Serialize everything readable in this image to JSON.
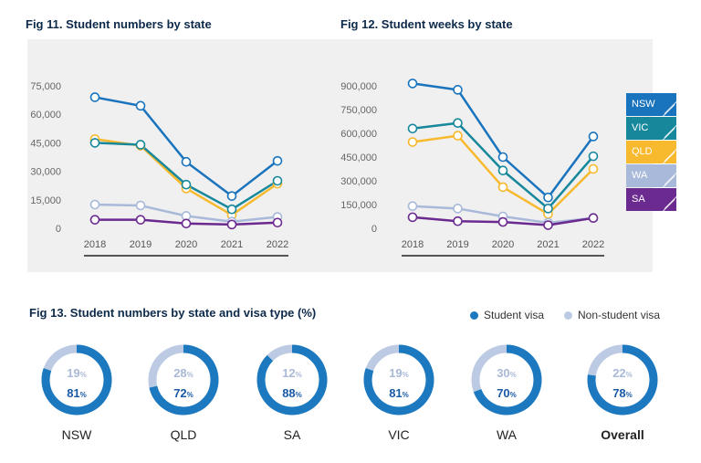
{
  "fig11": {
    "title": "Fig 11. Student numbers by state"
  },
  "fig12": {
    "title": "Fig 12. Student weeks by state"
  },
  "fig13": {
    "title": "Fig 13. Student numbers by state and visa type (%)",
    "legend": {
      "student": "Student visa",
      "non_student": "Non-student visa"
    }
  },
  "colors": {
    "NSW": "#1a74bd",
    "VIC": "#17889c",
    "QLD": "#f7b92e",
    "WA": "#a8b9da",
    "SA": "#6a2a8f",
    "student": "#1c79c0",
    "non_student": "#bccbe3"
  },
  "state_legend": [
    "NSW",
    "VIC",
    "QLD",
    "WA",
    "SA"
  ],
  "chart_data": [
    {
      "type": "line",
      "title": "Fig 11. Student numbers by state",
      "x": [
        "2018",
        "2019",
        "2020",
        "2021",
        "2022"
      ],
      "ylim": [
        0,
        75000
      ],
      "yticks": [
        0,
        15000,
        30000,
        45000,
        60000,
        75000
      ],
      "ytick_labels": [
        "0",
        "15,000",
        "30,000",
        "45,000",
        "60,000",
        "75,000"
      ],
      "series": [
        {
          "name": "QLD",
          "values": [
            47000,
            43500,
            21000,
            7000,
            23500
          ]
        },
        {
          "name": "VIC",
          "values": [
            45000,
            44000,
            23000,
            10000,
            25000
          ]
        },
        {
          "name": "WA",
          "values": [
            12500,
            12000,
            6500,
            3500,
            6000
          ]
        },
        {
          "name": "SA",
          "values": [
            4500,
            4500,
            2500,
            2000,
            3000
          ]
        },
        {
          "name": "NSW",
          "values": [
            69000,
            64500,
            35000,
            17000,
            35500
          ]
        }
      ]
    },
    {
      "type": "line",
      "title": "Fig 12. Student weeks by state",
      "x": [
        "2018",
        "2019",
        "2020",
        "2021",
        "2022"
      ],
      "ylim": [
        0,
        900000
      ],
      "yticks": [
        0,
        150000,
        300000,
        450000,
        600000,
        750000,
        900000
      ],
      "ytick_labels": [
        "0",
        "150,000",
        "300,000",
        "450,000",
        "600,000",
        "750,000",
        "900,000"
      ],
      "series": [
        {
          "name": "QLD",
          "values": [
            545000,
            585000,
            260000,
            90000,
            375000
          ]
        },
        {
          "name": "VIC",
          "values": [
            630000,
            665000,
            365000,
            125000,
            455000
          ]
        },
        {
          "name": "WA",
          "values": [
            140000,
            125000,
            75000,
            35000,
            65000
          ]
        },
        {
          "name": "SA",
          "values": [
            70000,
            45000,
            40000,
            20000,
            65000
          ]
        },
        {
          "name": "NSW",
          "values": [
            915000,
            875000,
            450000,
            195000,
            580000
          ]
        }
      ]
    },
    {
      "type": "pie",
      "title": "Fig 13. Student numbers by state and visa type (%)",
      "items": [
        {
          "label": "NSW",
          "non_student": "19",
          "student": "81",
          "student_value": 81,
          "bold": false
        },
        {
          "label": "QLD",
          "non_student": "28",
          "student": "72",
          "student_value": 72,
          "bold": false
        },
        {
          "label": "SA",
          "non_student": "12",
          "student": "88",
          "student_value": 88,
          "bold": false
        },
        {
          "label": "VIC",
          "non_student": "19",
          "student": "81",
          "student_value": 81,
          "bold": false
        },
        {
          "label": "WA",
          "non_student": "30",
          "student": "70",
          "student_value": 70,
          "bold": false
        },
        {
          "label": "Overall",
          "non_student": "22",
          "student": "78",
          "student_value": 78,
          "bold": true
        }
      ],
      "unit": "%"
    }
  ]
}
